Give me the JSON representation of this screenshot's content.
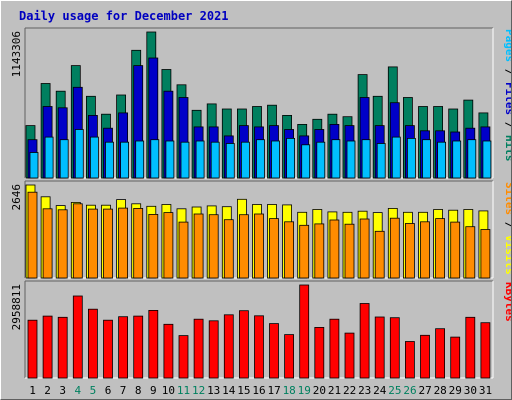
{
  "chart_data": {
    "type": "bar",
    "title": "Daily usage for December 2021",
    "categories": [
      "1",
      "2",
      "3",
      "4",
      "5",
      "6",
      "7",
      "8",
      "9",
      "10",
      "11",
      "12",
      "13",
      "14",
      "15",
      "16",
      "17",
      "18",
      "19",
      "20",
      "21",
      "22",
      "23",
      "24",
      "25",
      "26",
      "27",
      "28",
      "29",
      "30",
      "31"
    ],
    "weekend_days": [
      "4",
      "5",
      "11",
      "12",
      "18",
      "19",
      "25",
      "26"
    ],
    "panels": [
      {
        "id": "hits",
        "ymax_label": "1143306",
        "ymax": 1143306,
        "right_labels": [
          {
            "text": "Pages",
            "color": "#00bfff"
          },
          {
            "text": " / ",
            "color": "#000000"
          },
          {
            "text": "Files",
            "color": "#0000c8"
          },
          {
            "text": " / ",
            "color": "#000000"
          },
          {
            "text": "Hits",
            "color": "#007f5f"
          }
        ],
        "series": [
          {
            "name": "Hits",
            "color": "#007f5f",
            "values": [
              410000,
              740000,
              680000,
              880000,
              640000,
              500000,
              650000,
              1000000,
              1143306,
              850000,
              730000,
              530000,
              580000,
              540000,
              540000,
              560000,
              570000,
              490000,
              420000,
              460000,
              500000,
              480000,
              810000,
              640000,
              870000,
              630000,
              560000,
              560000,
              540000,
              610000,
              510000
            ]
          },
          {
            "name": "Files",
            "color": "#0000c8",
            "values": [
              300000,
              560000,
              550000,
              710000,
              490000,
              390000,
              510000,
              880000,
              940000,
              680000,
              630000,
              400000,
              400000,
              330000,
              410000,
              400000,
              410000,
              380000,
              330000,
              380000,
              420000,
              410000,
              630000,
              410000,
              590000,
              410000,
              370000,
              370000,
              360000,
              390000,
              400000
            ]
          },
          {
            "name": "Pages",
            "color": "#00bfff",
            "values": [
              200000,
              320000,
              300000,
              380000,
              320000,
              280000,
              280000,
              290000,
              300000,
              290000,
              280000,
              290000,
              280000,
              270000,
              280000,
              300000,
              290000,
              310000,
              260000,
              280000,
              300000,
              290000,
              300000,
              270000,
              320000,
              310000,
              300000,
              280000,
              290000,
              300000,
              290000
            ]
          }
        ]
      },
      {
        "id": "visits",
        "ymax_label": "2646",
        "ymax": 2646,
        "right_labels": [
          {
            "text": "Sites",
            "color": "#ff8c00"
          },
          {
            "text": " / ",
            "color": "#000000"
          },
          {
            "text": "Visits",
            "color": "#ffff00"
          }
        ],
        "series": [
          {
            "name": "Visits",
            "color": "#ffff00",
            "values": [
              2646,
              2310,
              2060,
              2150,
              2070,
              2070,
              2230,
              2110,
              2040,
              2090,
              1970,
              2020,
              2050,
              2030,
              2240,
              2090,
              2090,
              2080,
              1870,
              1950,
              1880,
              1870,
              1900,
              1860,
              1980,
              1870,
              1870,
              1950,
              1930,
              1950,
              1910
            ]
          },
          {
            "name": "Sites",
            "color": "#ff8c00",
            "values": [
              2440,
              1970,
              1940,
              2110,
              1960,
              1960,
              1990,
              1980,
              1810,
              1860,
              1590,
              1820,
              1800,
              1660,
              1800,
              1820,
              1690,
              1600,
              1500,
              1540,
              1650,
              1530,
              1680,
              1330,
              1700,
              1550,
              1600,
              1690,
              1590,
              1460,
              1380
            ]
          }
        ]
      },
      {
        "id": "kbytes",
        "ymax_label": "2958811",
        "ymax": 2958811,
        "right_labels": [
          {
            "text": "KBytes",
            "color": "#ff0000"
          }
        ],
        "series": [
          {
            "name": "KBytes",
            "color": "#ff0000",
            "values": [
              1840000,
              1970000,
              1930000,
              2610000,
              2190000,
              1840000,
              1950000,
              1970000,
              2150000,
              1710000,
              1350000,
              1870000,
              1820000,
              2010000,
              2140000,
              1980000,
              1730000,
              1380000,
              2958811,
              1610000,
              1870000,
              1430000,
              2370000,
              1940000,
              1920000,
              1160000,
              1360000,
              1570000,
              1300000,
              1930000,
              1760000
            ]
          }
        ]
      }
    ],
    "colors": {
      "background": "#c0c0c0",
      "plot_background": "#c0c0c0",
      "weekday_tick": "#000000",
      "weekend_tick": "#00805f",
      "title": "#0000c0"
    }
  }
}
